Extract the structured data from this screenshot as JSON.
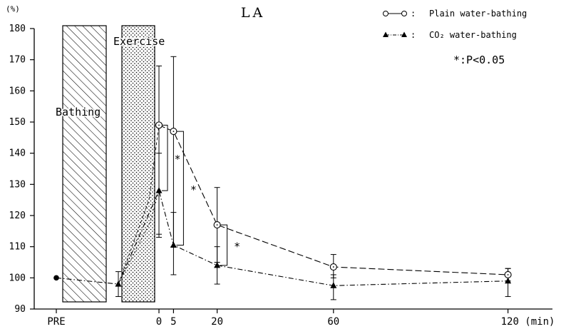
{
  "chart_data": {
    "type": "line",
    "title": "LA",
    "y_unit_label": "(%)",
    "xlabel": "",
    "ylabel": "",
    "ylim": [
      90,
      180
    ],
    "yticks": [
      90,
      100,
      110,
      120,
      130,
      140,
      150,
      160,
      170,
      180
    ],
    "x_tick_labels": [
      {
        "text": "PRE",
        "x": "PRE"
      },
      {
        "text": "0",
        "x": 0
      },
      {
        "text": "5",
        "x": 5
      },
      {
        "text": "20",
        "x": 20
      },
      {
        "text": "60",
        "x": 60
      },
      {
        "text": "120 (min)",
        "x": 120
      }
    ],
    "regions": [
      {
        "label": "Bathing",
        "pattern": "hatch"
      },
      {
        "label": "Exercise",
        "pattern": "dots"
      }
    ],
    "legend_position": "top-right",
    "series": [
      {
        "name": "Plain water-bathing",
        "legend_text": "Plain water-bathing",
        "marker": "open-circle",
        "line_style": "dashed",
        "points": [
          {
            "x": 0,
            "y": 149,
            "err_low": 114,
            "err_high": 168
          },
          {
            "x": 5,
            "y": 147,
            "err_low": 110,
            "err_high": 171
          },
          {
            "x": 20,
            "y": 117,
            "err_low": 105,
            "err_high": 129
          },
          {
            "x": 60,
            "y": 103.5,
            "err_low": 100,
            "err_high": 107.5
          },
          {
            "x": 120,
            "y": 101,
            "err_low": 99,
            "err_high": 103
          }
        ]
      },
      {
        "name": "CO2 water-bathing",
        "legend_text": "CO₂ water-bathing",
        "marker": "filled-triangle",
        "line_style": "dash-dot",
        "points": [
          {
            "x": "PRE",
            "y": 100
          },
          {
            "x": "pre-exercise",
            "y": 98,
            "err_low": 94,
            "err_high": 102
          },
          {
            "x": 0,
            "y": 128,
            "err_low": 113,
            "err_high": 140
          },
          {
            "x": 5,
            "y": 110.5,
            "err_low": 101,
            "err_high": 121
          },
          {
            "x": 20,
            "y": 104,
            "err_low": 98,
            "err_high": 110
          },
          {
            "x": 60,
            "y": 97.5,
            "err_low": 93,
            "err_high": 101
          },
          {
            "x": 120,
            "y": 99,
            "err_low": 94,
            "err_high": 103
          }
        ]
      }
    ],
    "significance": {
      "legend_text": "*:P<0.05",
      "marks": [
        {
          "x": 0,
          "text": "*"
        },
        {
          "x": 5,
          "text": "*"
        },
        {
          "x": 20,
          "text": "*"
        }
      ]
    }
  }
}
